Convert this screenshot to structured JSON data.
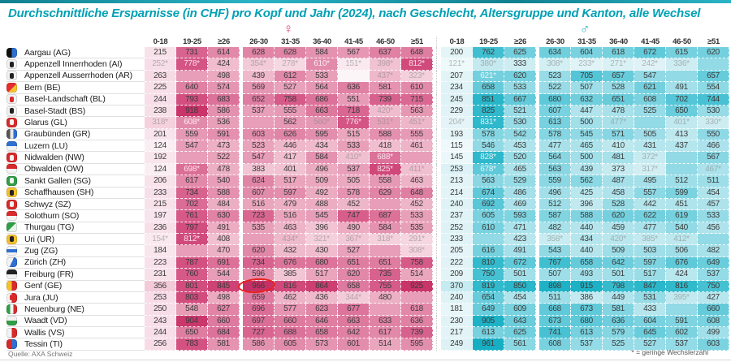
{
  "page": {
    "title": "Durchschnittliche Ersparnisse (in CHF) pro Kopf und Jahr (2024), nach Geschlecht, Altersgruppe und Kanton, alle Wechsel",
    "source": "Quelle: AXA Schweiz",
    "footnote": "* = geringe Wechslerzahl"
  },
  "legend": {
    "female_symbol": "♀",
    "male_symbol": "♂"
  },
  "colors": {
    "title": "#00a0b5",
    "female_accent": "#e0457b",
    "male_accent": "#2ab3c6",
    "annotation_red": "#e8231c",
    "cell_text": "#3b3b3b",
    "pink_ramp": [
      [
        100,
        "#fbf1f5"
      ],
      [
        250,
        "#f7dde7"
      ],
      [
        400,
        "#f1c2d2"
      ],
      [
        500,
        "#ebaac0"
      ],
      [
        600,
        "#e38dac"
      ],
      [
        700,
        "#db6d96"
      ],
      [
        800,
        "#d24d7e"
      ],
      [
        900,
        "#ca376c"
      ],
      [
        980,
        "#c62e63"
      ]
    ],
    "teal_ramp": [
      [
        100,
        "#f1fafb"
      ],
      [
        250,
        "#def2f6"
      ],
      [
        400,
        "#c0e9ef"
      ],
      [
        500,
        "#a1dfe9"
      ],
      [
        600,
        "#7cd3e0"
      ],
      [
        700,
        "#55c6d7"
      ],
      [
        800,
        "#35bbcd"
      ],
      [
        900,
        "#1fb2c6"
      ],
      [
        980,
        "#14adc2"
      ]
    ]
  },
  "annotation": {
    "shape": "ellipse",
    "canton": "Genf (GE)",
    "side": "female",
    "column": "26-30"
  },
  "chart_data": {
    "type": "heatmap",
    "unit": "CHF",
    "columns": [
      "0-18",
      "19-25",
      "≥26",
      "26-30",
      "31-35",
      "36-40",
      "41-45",
      "46-50",
      "≥51"
    ],
    "column_groups": [
      "female",
      "male"
    ],
    "rows": [
      {
        "canton": "Aargau (AG)",
        "flag": {
          "bg": "linear-gradient(90deg,#111111 50%,#2e6fd2 50%)",
          "mark": null
        },
        "female": [
          "215",
          "731",
          "614",
          "628",
          "628",
          "584",
          "567",
          "637",
          "648"
        ],
        "male": [
          "200",
          "762",
          "625",
          "634",
          "604",
          "618",
          "672",
          "615",
          "620"
        ]
      },
      {
        "canton": "Appenzell Innerrhoden (AI)",
        "flag": {
          "bg": "#f2f2f2",
          "mark": "#222222"
        },
        "female": [
          "252*",
          "778*",
          "424",
          "354*",
          "278*",
          "610*",
          "151*",
          "398*",
          "812*"
        ],
        "male": [
          "121*",
          "380*",
          "333",
          "308*",
          "233*",
          "271*",
          "242*",
          "336*",
          ""
        ]
      },
      {
        "canton": "Appenzell Ausserrhoden (AR)",
        "flag": {
          "bg": "#f2f2f2",
          "mark": "#222222"
        },
        "female": [
          "263",
          "",
          "498",
          "439",
          "612",
          "533",
          "-",
          "437*",
          "323*"
        ],
        "male": [
          "207",
          "621*",
          "620",
          "523",
          "705",
          "657",
          "547",
          "",
          "657"
        ]
      },
      {
        "canton": "Bern (BE)",
        "flag": {
          "bg": "linear-gradient(135deg,#e62e2e 55%,#f5c12e 55%)",
          "mark": null
        },
        "female": [
          "225",
          "640",
          "574",
          "569",
          "527",
          "564",
          "636",
          "581",
          "610"
        ],
        "male": [
          "234",
          "658",
          "533",
          "522",
          "507",
          "528",
          "621",
          "491",
          "554"
        ]
      },
      {
        "canton": "Basel-Landschaft (BL)",
        "flag": {
          "bg": "#f2f2f2",
          "mark": "#d92a2a"
        },
        "female": [
          "244",
          "793",
          "683",
          "652",
          "758",
          "686",
          "551",
          "739",
          "715"
        ],
        "male": [
          "245",
          "851",
          "667",
          "680",
          "632",
          "651",
          "608",
          "702",
          "744"
        ]
      },
      {
        "canton": "Basel-Stadt (BS)",
        "flag": {
          "bg": "#f2f2f2",
          "mark": "#222222"
        },
        "female": [
          "238",
          "918",
          "586",
          "537",
          "555",
          "663",
          "718",
          "420*",
          "563"
        ],
        "male": [
          "229",
          "825",
          "521",
          "607",
          "447",
          "478",
          "525",
          "650",
          "530"
        ]
      },
      {
        "canton": "Glarus (GL)",
        "flag": {
          "bg": "#d92a2a",
          "mark": "#f2f2f2"
        },
        "female": [
          "318*",
          "608*",
          "536",
          "",
          "562",
          "560*",
          "776*",
          "531*",
          "451*"
        ],
        "male": [
          "204*",
          "831*",
          "530",
          "613",
          "500",
          "477*",
          "",
          "401*",
          "330*"
        ]
      },
      {
        "canton": "Graubünden (GR)",
        "flag": {
          "bg": "linear-gradient(90deg,#555555 33%,#e8e8e8 33%,#e8e8e8 66%,#2e6fd2 66%)",
          "mark": null
        },
        "female": [
          "201",
          "559",
          "591",
          "603",
          "626",
          "595",
          "515",
          "588",
          "555"
        ],
        "male": [
          "193",
          "578",
          "542",
          "578",
          "545",
          "571",
          "505",
          "413",
          "550"
        ]
      },
      {
        "canton": "Luzern (LU)",
        "flag": {
          "bg": "linear-gradient(180deg,#2e6fd2 50%,#f2f2f2 50%)",
          "mark": null
        },
        "female": [
          "124",
          "547",
          "473",
          "523",
          "446",
          "434",
          "533",
          "418",
          "461"
        ],
        "male": [
          "115",
          "546",
          "453",
          "477",
          "465",
          "410",
          "431",
          "437",
          "466"
        ]
      },
      {
        "canton": "Nidwalden (NW)",
        "flag": {
          "bg": "#d92a2a",
          "mark": "#f2f2f2"
        },
        "female": [
          "192",
          "",
          "522",
          "547",
          "417",
          "584",
          "410*",
          "688*",
          ""
        ],
        "male": [
          "145",
          "828*",
          "520",
          "564",
          "500",
          "481",
          "372*",
          "",
          "567"
        ]
      },
      {
        "canton": "Obwalden (OW)",
        "flag": {
          "bg": "linear-gradient(180deg,#d92a2a 50%,#f2f2f2 50%)",
          "mark": null
        },
        "female": [
          "124",
          "698*",
          "478",
          "383",
          "401",
          "496",
          "537",
          "825*",
          "411*"
        ],
        "male": [
          "253",
          "678*",
          "465",
          "563",
          "439",
          "373",
          "317*",
          "",
          "467*"
        ]
      },
      {
        "canton": "Sankt Gallen (SG)",
        "flag": {
          "bg": "#2f9e44",
          "mark": "#f2f2f2"
        },
        "female": [
          "206",
          "617",
          "540",
          "624",
          "517",
          "509",
          "505",
          "558",
          "463"
        ],
        "male": [
          "213",
          "563",
          "529",
          "559",
          "562",
          "487",
          "495",
          "512",
          "511"
        ]
      },
      {
        "canton": "Schaffhausen (SH)",
        "flag": {
          "bg": "#f5c12e",
          "mark": "#222222"
        },
        "female": [
          "233",
          "734",
          "588",
          "607",
          "597",
          "492",
          "578",
          "629",
          "648"
        ],
        "male": [
          "214",
          "674",
          "486",
          "496",
          "425",
          "458",
          "557",
          "599",
          "454"
        ]
      },
      {
        "canton": "Schwyz (SZ)",
        "flag": {
          "bg": "#d92a2a",
          "mark": "#f2f2f2"
        },
        "female": [
          "215",
          "702",
          "484",
          "516",
          "479",
          "488",
          "452",
          "",
          "452"
        ],
        "male": [
          "240",
          "692",
          "469",
          "512",
          "396",
          "528",
          "442",
          "451",
          "457"
        ]
      },
      {
        "canton": "Solothurn (SO)",
        "flag": {
          "bg": "linear-gradient(180deg,#d92a2a 50%,#f2f2f2 50%)",
          "mark": null
        },
        "female": [
          "197",
          "761",
          "630",
          "723",
          "516",
          "545",
          "747",
          "687",
          "533"
        ],
        "male": [
          "237",
          "605",
          "593",
          "587",
          "588",
          "620",
          "622",
          "619",
          "533"
        ]
      },
      {
        "canton": "Thurgau (TG)",
        "flag": {
          "bg": "linear-gradient(135deg,#2f9e44 50%,#e8f5e9 50%)",
          "mark": null
        },
        "female": [
          "236",
          "797",
          "491",
          "535",
          "463",
          "396",
          "490",
          "584",
          "535"
        ],
        "male": [
          "252",
          "610",
          "471",
          "482",
          "440",
          "459",
          "477",
          "540",
          "456"
        ]
      },
      {
        "canton": "Uri (UR)",
        "flag": {
          "bg": "#f5c12e",
          "mark": "#222222"
        },
        "female": [
          "154*",
          "812*",
          "408",
          "",
          "434*",
          "321*",
          "367*",
          "318*",
          "291*"
        ],
        "male": [
          "233",
          "",
          "423",
          "358*",
          "434",
          "420*",
          "385*",
          "412*",
          ""
        ]
      },
      {
        "canton": "Zug (ZG)",
        "flag": {
          "bg": "linear-gradient(180deg,#f2f2f2 33%,#2e6fd2 33%,#2e6fd2 66%,#f2f2f2 66%)",
          "mark": null
        },
        "female": [
          "184",
          "",
          "470",
          "620",
          "432",
          "430",
          "527",
          "",
          "308*"
        ],
        "male": [
          "205",
          "616",
          "491",
          "543",
          "440",
          "509",
          "503",
          "506",
          "482"
        ]
      },
      {
        "canton": "Zürich (ZH)",
        "flag": {
          "bg": "linear-gradient(115deg,#f2f2f2 50%,#2e6fd2 50%)",
          "mark": null
        },
        "female": [
          "223",
          "787",
          "691",
          "734",
          "676",
          "680",
          "651",
          "651",
          "758"
        ],
        "male": [
          "222",
          "810",
          "672",
          "767",
          "658",
          "642",
          "597",
          "676",
          "649"
        ]
      },
      {
        "canton": "Freiburg (FR)",
        "flag": {
          "bg": "linear-gradient(180deg,#222222 50%,#f2f2f2 50%)",
          "mark": null
        },
        "female": [
          "231",
          "760",
          "544",
          "596",
          "385",
          "517",
          "620",
          "735",
          "514"
        ],
        "male": [
          "209",
          "750",
          "501",
          "507",
          "493",
          "501",
          "517",
          "424",
          "537"
        ]
      },
      {
        "canton": "Genf (GE)",
        "flag": {
          "bg": "linear-gradient(90deg,#f5c12e 50%,#d92a2a 50%)",
          "mark": null
        },
        "female": [
          "356",
          "801",
          "845",
          "966",
          "816",
          "864",
          "658",
          "755",
          "925"
        ],
        "male": [
          "370",
          "819",
          "850",
          "898",
          "915",
          "798",
          "847",
          "816",
          "750"
        ]
      },
      {
        "canton": "Jura (JU)",
        "flag": {
          "bg": "linear-gradient(90deg,#f2f2f2 50%,#d92a2a 50%)",
          "mark": "#d92a2a"
        },
        "female": [
          "253",
          "803",
          "498",
          "659",
          "462",
          "436",
          "344*",
          "480",
          ""
        ],
        "male": [
          "240",
          "654",
          "454",
          "511",
          "386",
          "449",
          "531",
          "395*",
          "427"
        ]
      },
      {
        "canton": "Neuenburg (NE)",
        "flag": {
          "bg": "linear-gradient(90deg,#2f9e44 33%,#f2f2f2 33%,#f2f2f2 66%,#d92a2a 66%)",
          "mark": null
        },
        "female": [
          "250",
          "548",
          "627",
          "696",
          "577",
          "623",
          "677",
          "",
          "618"
        ],
        "male": [
          "181",
          "649",
          "609",
          "668",
          "673",
          "581",
          "433",
          "",
          "660"
        ]
      },
      {
        "canton": "Waadt (VD)",
        "flag": {
          "bg": "linear-gradient(180deg,#f2f2f2 50%,#2f9e44 50%)",
          "mark": null
        },
        "female": [
          "243",
          "904",
          "660",
          "697",
          "660",
          "646",
          "663",
          "633",
          "636"
        ],
        "male": [
          "230",
          "905",
          "643",
          "673",
          "680",
          "636",
          "604",
          "591",
          "608"
        ]
      },
      {
        "canton": "Wallis (VS)",
        "flag": {
          "bg": "linear-gradient(90deg,#f2f2f2 50%,#d92a2a 50%)",
          "mark": null
        },
        "female": [
          "244",
          "650",
          "684",
          "727",
          "688",
          "658",
          "642",
          "617",
          "739"
        ],
        "male": [
          "217",
          "613",
          "625",
          "741",
          "613",
          "579",
          "645",
          "602",
          "499"
        ]
      },
      {
        "canton": "Tessin (TI)",
        "flag": {
          "bg": "linear-gradient(90deg,#d92a2a 50%,#2e6fd2 50%)",
          "mark": null
        },
        "female": [
          "256",
          "783",
          "581",
          "586",
          "605",
          "573",
          "601",
          "514",
          "595"
        ],
        "male": [
          "249",
          "961",
          "561",
          "608",
          "537",
          "525",
          "527",
          "537",
          "603"
        ]
      }
    ]
  }
}
